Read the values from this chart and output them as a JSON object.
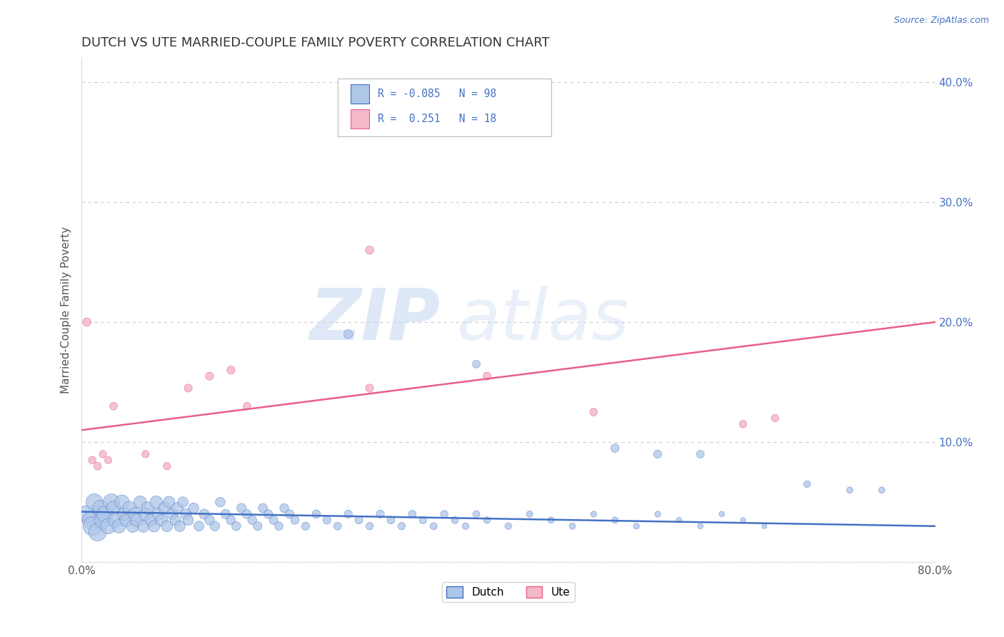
{
  "title": "DUTCH VS UTE MARRIED-COUPLE FAMILY POVERTY CORRELATION CHART",
  "source_text": "Source: ZipAtlas.com",
  "ylabel": "Married-Couple Family Poverty",
  "xlim": [
    0.0,
    0.8
  ],
  "ylim": [
    0.0,
    0.42
  ],
  "xticks": [
    0.0,
    0.1,
    0.2,
    0.3,
    0.4,
    0.5,
    0.6,
    0.7,
    0.8
  ],
  "yticks": [
    0.0,
    0.1,
    0.2,
    0.3,
    0.4
  ],
  "dutch_color": "#aec6e8",
  "ute_color": "#f4b8c8",
  "dutch_line_color": "#4472c4",
  "ute_line_color": "#e8608a",
  "watermark_zip": "ZIP",
  "watermark_atlas": "atlas",
  "background_color": "#ffffff",
  "grid_color": "#cccccc",
  "title_color": "#444444",
  "dutch_points_x": [
    0.005,
    0.008,
    0.01,
    0.012,
    0.015,
    0.018,
    0.02,
    0.022,
    0.025,
    0.028,
    0.03,
    0.032,
    0.035,
    0.038,
    0.04,
    0.042,
    0.045,
    0.048,
    0.05,
    0.052,
    0.055,
    0.058,
    0.06,
    0.062,
    0.065,
    0.068,
    0.07,
    0.072,
    0.075,
    0.078,
    0.08,
    0.082,
    0.085,
    0.088,
    0.09,
    0.092,
    0.095,
    0.098,
    0.1,
    0.105,
    0.11,
    0.115,
    0.12,
    0.125,
    0.13,
    0.135,
    0.14,
    0.145,
    0.15,
    0.155,
    0.16,
    0.165,
    0.17,
    0.175,
    0.18,
    0.185,
    0.19,
    0.195,
    0.2,
    0.21,
    0.22,
    0.23,
    0.24,
    0.25,
    0.26,
    0.27,
    0.28,
    0.29,
    0.3,
    0.31,
    0.32,
    0.33,
    0.34,
    0.35,
    0.36,
    0.37,
    0.38,
    0.4,
    0.42,
    0.44,
    0.46,
    0.48,
    0.5,
    0.52,
    0.54,
    0.56,
    0.58,
    0.6,
    0.62,
    0.64,
    0.25,
    0.37,
    0.5,
    0.54,
    0.58,
    0.68,
    0.72,
    0.75
  ],
  "dutch_points_y": [
    0.04,
    0.035,
    0.03,
    0.05,
    0.025,
    0.045,
    0.035,
    0.04,
    0.03,
    0.05,
    0.045,
    0.035,
    0.03,
    0.05,
    0.04,
    0.035,
    0.045,
    0.03,
    0.04,
    0.035,
    0.05,
    0.03,
    0.04,
    0.045,
    0.035,
    0.03,
    0.05,
    0.04,
    0.035,
    0.045,
    0.03,
    0.05,
    0.04,
    0.035,
    0.045,
    0.03,
    0.05,
    0.04,
    0.035,
    0.045,
    0.03,
    0.04,
    0.035,
    0.03,
    0.05,
    0.04,
    0.035,
    0.03,
    0.045,
    0.04,
    0.035,
    0.03,
    0.045,
    0.04,
    0.035,
    0.03,
    0.045,
    0.04,
    0.035,
    0.03,
    0.04,
    0.035,
    0.03,
    0.04,
    0.035,
    0.03,
    0.04,
    0.035,
    0.03,
    0.04,
    0.035,
    0.03,
    0.04,
    0.035,
    0.03,
    0.04,
    0.035,
    0.03,
    0.04,
    0.035,
    0.03,
    0.04,
    0.035,
    0.03,
    0.04,
    0.035,
    0.03,
    0.04,
    0.035,
    0.03,
    0.19,
    0.165,
    0.095,
    0.09,
    0.09,
    0.065,
    0.06,
    0.06
  ],
  "dutch_sizes": [
    300,
    250,
    350,
    280,
    320,
    260,
    300,
    270,
    240,
    280,
    200,
    220,
    190,
    210,
    180,
    170,
    190,
    160,
    180,
    170,
    160,
    150,
    170,
    160,
    150,
    140,
    160,
    150,
    140,
    150,
    130,
    140,
    130,
    120,
    130,
    120,
    110,
    120,
    110,
    110,
    100,
    100,
    95,
    90,
    95,
    90,
    85,
    80,
    90,
    85,
    80,
    75,
    85,
    80,
    75,
    70,
    80,
    75,
    70,
    65,
    70,
    65,
    60,
    65,
    60,
    55,
    65,
    60,
    55,
    60,
    55,
    50,
    55,
    50,
    45,
    50,
    45,
    45,
    40,
    40,
    40,
    35,
    40,
    35,
    35,
    30,
    30,
    30,
    25,
    25,
    80,
    60,
    70,
    65,
    60,
    45,
    40,
    40
  ],
  "ute_points_x": [
    0.005,
    0.01,
    0.015,
    0.02,
    0.025,
    0.03,
    0.06,
    0.08,
    0.1,
    0.12,
    0.14,
    0.155,
    0.27,
    0.38,
    0.48,
    0.62,
    0.65,
    0.27
  ],
  "ute_points_y": [
    0.2,
    0.085,
    0.08,
    0.09,
    0.085,
    0.13,
    0.09,
    0.08,
    0.145,
    0.155,
    0.16,
    0.13,
    0.26,
    0.155,
    0.125,
    0.115,
    0.12,
    0.145
  ],
  "ute_sizes": [
    70,
    60,
    60,
    55,
    55,
    60,
    55,
    55,
    65,
    65,
    65,
    60,
    70,
    65,
    60,
    55,
    55,
    65
  ],
  "dutch_trend_x0": 0.0,
  "dutch_trend_y0": 0.042,
  "dutch_trend_x1": 0.8,
  "dutch_trend_y1": 0.03,
  "ute_trend_x0": 0.0,
  "ute_trend_y0": 0.11,
  "ute_trend_x1": 0.8,
  "ute_trend_y1": 0.2
}
